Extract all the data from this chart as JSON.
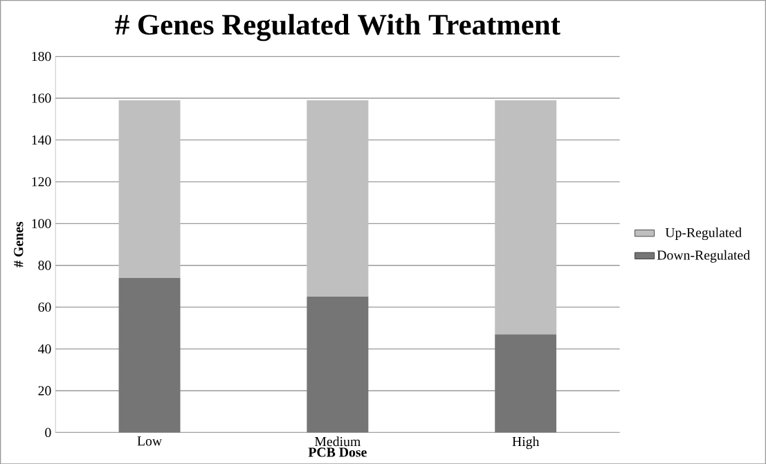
{
  "chart_data": {
    "type": "bar",
    "stacked": true,
    "title": "# Genes Regulated With Treatment",
    "xlabel": "PCB Dose",
    "ylabel": "# Genes",
    "categories": [
      "Low",
      "Medium",
      "High"
    ],
    "series": [
      {
        "name": "Down-Regulated",
        "color": "#757575",
        "values": [
          74,
          65,
          47
        ]
      },
      {
        "name": "Up-Regulated",
        "color": "#bfbfbf",
        "values": [
          85,
          94,
          112
        ]
      }
    ],
    "ylim": [
      0,
      180
    ],
    "yticks": [
      0,
      20,
      40,
      60,
      80,
      100,
      120,
      140,
      160,
      180
    ],
    "grid": "y",
    "legend": "right"
  }
}
